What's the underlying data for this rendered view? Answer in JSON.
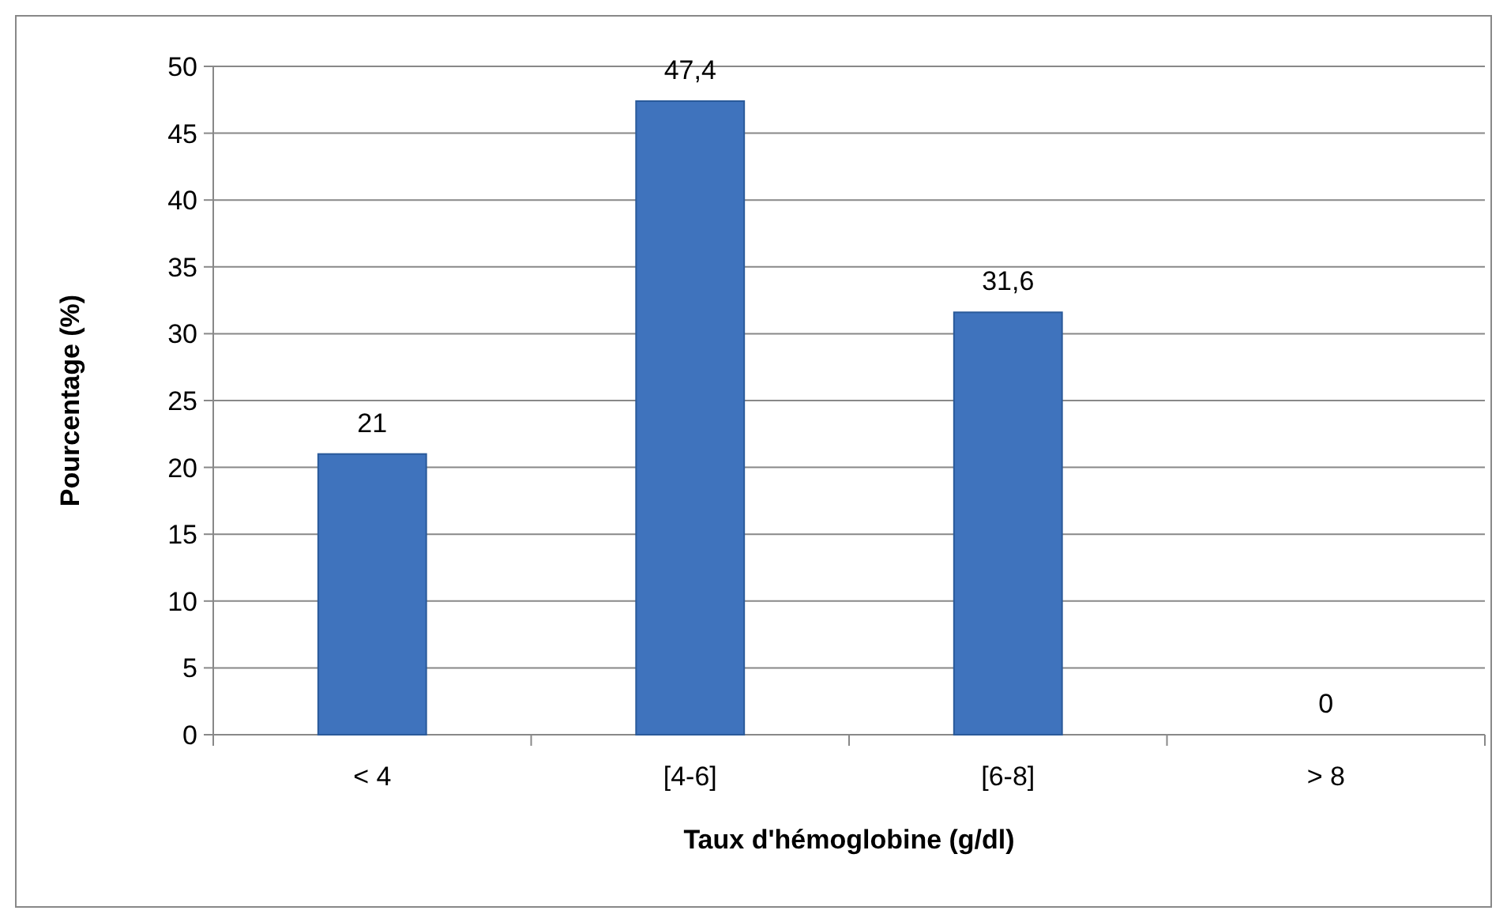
{
  "chart_data": {
    "type": "bar",
    "xlabel": "Taux d'hémoglobine (g/dl)",
    "ylabel": "Pourcentage (%)",
    "categories": [
      "< 4",
      "[4-6]",
      "[6-8]",
      "> 8"
    ],
    "values": [
      21,
      47.4,
      31.6,
      0
    ],
    "value_labels": [
      "21",
      "47,4",
      "31,6",
      "0"
    ],
    "color": "#3f73bd",
    "ylim": [
      0,
      50
    ],
    "yticks": [
      0,
      5,
      10,
      15,
      20,
      25,
      30,
      35,
      40,
      45,
      50
    ],
    "grid": "y"
  }
}
